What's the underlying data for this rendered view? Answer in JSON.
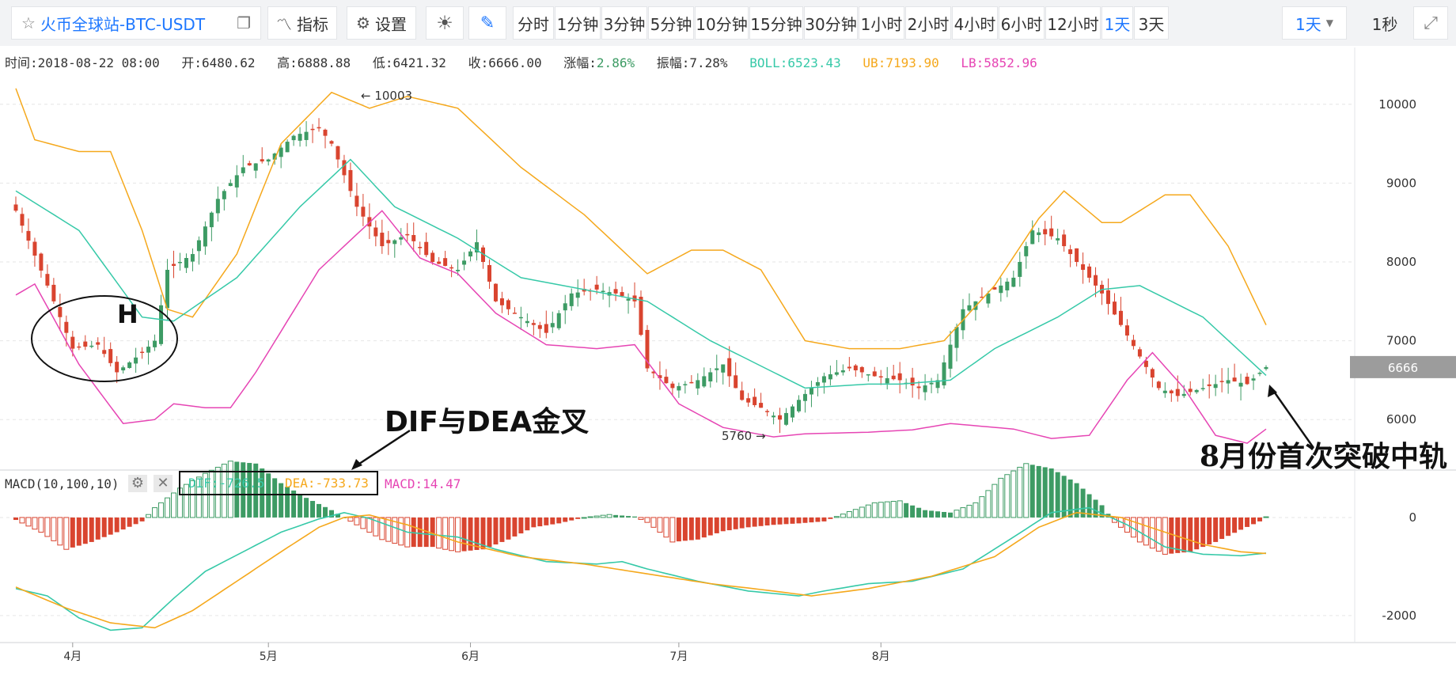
{
  "toolbar": {
    "symbol": "火币全球站-BTC-USDT",
    "indicator": "指标",
    "settings": "设置",
    "periods": [
      "分时",
      "1分钟",
      "3分钟",
      "5分钟",
      "10分钟",
      "15分钟",
      "30分钟",
      "1小时",
      "2小时",
      "4小时",
      "6小时",
      "12小时",
      "1天",
      "3天"
    ],
    "active_period": "1天",
    "period_select": "1天",
    "refresh": "1秒"
  },
  "info": {
    "time": "时间:2018-08-22 08:00",
    "open": "开:6480.62",
    "high": "高:6888.88",
    "low": "低:6421.32",
    "close": "收:6666.00",
    "change": "涨幅:2.86%",
    "amplitude": "振幅:7.28%",
    "boll": "BOLL:6523.43",
    "ub": "UB:7193.90",
    "lb": "LB:5852.96"
  },
  "macd": {
    "label": "MACD(10,100,10)",
    "dif": "DIF:-726.5",
    "dea": "DEA:-733.73",
    "macd": "MACD:14.47"
  },
  "annotations": {
    "pattern": "H",
    "cross": "DIF与DEA金叉",
    "breakout": "8月份首次突破中轨",
    "high_mark": "← 10003",
    "low_mark": "5760 →"
  },
  "colors": {
    "up": "#3d9b64",
    "down": "#d9442f",
    "mid": "#36c9a8",
    "upper": "#f5a81c",
    "lower": "#e645b4",
    "accent": "#1f78ff"
  },
  "chart_data": {
    "type": "candlestick",
    "price_axis": {
      "ticks": [
        10000,
        9000,
        8000,
        7000,
        6000
      ],
      "range": [
        5400,
        10600
      ]
    },
    "macd_axis": {
      "ticks": [
        0,
        -2000
      ],
      "range": [
        -2600,
        1000
      ]
    },
    "x_ticks": [
      "4月",
      "5月",
      "6月",
      "7月",
      "8月"
    ],
    "current_price": "6666",
    "key_points": [
      {
        "date": "2018-05-05",
        "label": "high",
        "value": 10003
      },
      {
        "date": "2018-06-29",
        "label": "low",
        "value": 5760
      },
      {
        "date": "2018-08-22",
        "label": "close",
        "value": 6666
      }
    ],
    "closes_anchor": [
      [
        0,
        8650
      ],
      [
        5,
        7700
      ],
      [
        9,
        6900
      ],
      [
        13,
        6950
      ],
      [
        16,
        6600
      ],
      [
        20,
        6850
      ],
      [
        22,
        7000
      ],
      [
        24,
        7900
      ],
      [
        28,
        8100
      ],
      [
        32,
        8800
      ],
      [
        36,
        9200
      ],
      [
        40,
        9300
      ],
      [
        44,
        9600
      ],
      [
        48,
        9700
      ],
      [
        50,
        9500
      ],
      [
        54,
        8700
      ],
      [
        58,
        8200
      ],
      [
        62,
        8350
      ],
      [
        66,
        8000
      ],
      [
        70,
        7900
      ],
      [
        73,
        8250
      ],
      [
        76,
        7500
      ],
      [
        80,
        7300
      ],
      [
        84,
        7100
      ],
      [
        88,
        7600
      ],
      [
        92,
        7650
      ],
      [
        95,
        7600
      ],
      [
        98,
        7500
      ],
      [
        100,
        6650
      ],
      [
        104,
        6400
      ],
      [
        108,
        6500
      ],
      [
        112,
        6700
      ],
      [
        115,
        6250
      ],
      [
        118,
        6150
      ],
      [
        121,
        6000
      ],
      [
        124,
        6250
      ],
      [
        128,
        6550
      ],
      [
        132,
        6650
      ],
      [
        136,
        6550
      ],
      [
        140,
        6500
      ],
      [
        143,
        6400
      ],
      [
        146,
        6500
      ],
      [
        150,
        7400
      ],
      [
        154,
        7600
      ],
      [
        158,
        7800
      ],
      [
        161,
        8400
      ],
      [
        165,
        8300
      ],
      [
        169,
        7900
      ],
      [
        172,
        7600
      ],
      [
        175,
        7200
      ],
      [
        178,
        6800
      ],
      [
        181,
        6400
      ],
      [
        184,
        6300
      ],
      [
        188,
        6400
      ],
      [
        192,
        6500
      ],
      [
        195,
        6450
      ],
      [
        198,
        6666
      ]
    ],
    "boll_mid_anchor": [
      [
        0,
        8900
      ],
      [
        10,
        8400
      ],
      [
        20,
        7300
      ],
      [
        25,
        7250
      ],
      [
        35,
        7800
      ],
      [
        45,
        8700
      ],
      [
        53,
        9300
      ],
      [
        60,
        8700
      ],
      [
        70,
        8300
      ],
      [
        80,
        7800
      ],
      [
        90,
        7650
      ],
      [
        100,
        7500
      ],
      [
        110,
        7000
      ],
      [
        120,
        6600
      ],
      [
        125,
        6400
      ],
      [
        135,
        6450
      ],
      [
        140,
        6450
      ],
      [
        148,
        6500
      ],
      [
        155,
        6900
      ],
      [
        165,
        7300
      ],
      [
        172,
        7650
      ],
      [
        178,
        7700
      ],
      [
        188,
        7300
      ],
      [
        198,
        6560
      ]
    ],
    "boll_upper_anchor": [
      [
        0,
        10200
      ],
      [
        3,
        9550
      ],
      [
        10,
        9400
      ],
      [
        15,
        9400
      ],
      [
        20,
        8400
      ],
      [
        24,
        7400
      ],
      [
        28,
        7300
      ],
      [
        35,
        8100
      ],
      [
        42,
        9500
      ],
      [
        50,
        10150
      ],
      [
        56,
        9950
      ],
      [
        62,
        10100
      ],
      [
        70,
        9950
      ],
      [
        80,
        9200
      ],
      [
        90,
        8600
      ],
      [
        100,
        7850
      ],
      [
        107,
        8150
      ],
      [
        112,
        8150
      ],
      [
        118,
        7900
      ],
      [
        125,
        7000
      ],
      [
        132,
        6900
      ],
      [
        140,
        6900
      ],
      [
        147,
        7000
      ],
      [
        155,
        7700
      ],
      [
        162,
        8550
      ],
      [
        166,
        8900
      ],
      [
        172,
        8500
      ],
      [
        175,
        8500
      ],
      [
        182,
        8850
      ],
      [
        186,
        8850
      ],
      [
        192,
        8200
      ],
      [
        198,
        7200
      ]
    ],
    "boll_lower_anchor": [
      [
        0,
        7580
      ],
      [
        3,
        7720
      ],
      [
        10,
        6700
      ],
      [
        17,
        5950
      ],
      [
        22,
        6000
      ],
      [
        25,
        6200
      ],
      [
        30,
        6150
      ],
      [
        34,
        6150
      ],
      [
        38,
        6600
      ],
      [
        48,
        7900
      ],
      [
        52,
        8200
      ],
      [
        58,
        8650
      ],
      [
        64,
        8050
      ],
      [
        70,
        7850
      ],
      [
        76,
        7350
      ],
      [
        84,
        6950
      ],
      [
        92,
        6900
      ],
      [
        98,
        6950
      ],
      [
        105,
        6200
      ],
      [
        112,
        5900
      ],
      [
        120,
        5780
      ],
      [
        125,
        5820
      ],
      [
        135,
        5840
      ],
      [
        142,
        5870
      ],
      [
        148,
        5950
      ],
      [
        158,
        5880
      ],
      [
        164,
        5760
      ],
      [
        170,
        5800
      ],
      [
        176,
        6500
      ],
      [
        180,
        6850
      ],
      [
        185,
        6400
      ],
      [
        190,
        5800
      ],
      [
        195,
        5700
      ],
      [
        198,
        5880
      ]
    ],
    "macd_dif_anchor": [
      [
        0,
        -1450
      ],
      [
        5,
        -1600
      ],
      [
        10,
        -2050
      ],
      [
        15,
        -2300
      ],
      [
        20,
        -2250
      ],
      [
        25,
        -1650
      ],
      [
        30,
        -1100
      ],
      [
        36,
        -700
      ],
      [
        42,
        -300
      ],
      [
        48,
        -30
      ],
      [
        52,
        100
      ],
      [
        56,
        -20
      ],
      [
        62,
        -300
      ],
      [
        70,
        -400
      ],
      [
        76,
        -650
      ],
      [
        84,
        -900
      ],
      [
        92,
        -950
      ],
      [
        96,
        -900
      ],
      [
        100,
        -1050
      ],
      [
        108,
        -1300
      ],
      [
        116,
        -1500
      ],
      [
        124,
        -1600
      ],
      [
        128,
        -1500
      ],
      [
        135,
        -1350
      ],
      [
        142,
        -1300
      ],
      [
        150,
        -1050
      ],
      [
        158,
        -400
      ],
      [
        164,
        100
      ],
      [
        170,
        200
      ],
      [
        176,
        -150
      ],
      [
        182,
        -600
      ],
      [
        188,
        -750
      ],
      [
        194,
        -780
      ],
      [
        198,
        -726
      ]
    ],
    "macd_dea_anchor": [
      [
        0,
        -1420
      ],
      [
        8,
        -1850
      ],
      [
        15,
        -2150
      ],
      [
        22,
        -2250
      ],
      [
        28,
        -1900
      ],
      [
        35,
        -1300
      ],
      [
        42,
        -700
      ],
      [
        48,
        -200
      ],
      [
        52,
        0
      ],
      [
        56,
        50
      ],
      [
        62,
        -150
      ],
      [
        70,
        -500
      ],
      [
        80,
        -800
      ],
      [
        90,
        -950
      ],
      [
        100,
        -1150
      ],
      [
        110,
        -1350
      ],
      [
        120,
        -1500
      ],
      [
        126,
        -1600
      ],
      [
        135,
        -1450
      ],
      [
        145,
        -1200
      ],
      [
        155,
        -800
      ],
      [
        162,
        -200
      ],
      [
        168,
        100
      ],
      [
        175,
        0
      ],
      [
        182,
        -300
      ],
      [
        188,
        -550
      ],
      [
        194,
        -700
      ],
      [
        198,
        -734
      ]
    ],
    "macd_hist_anchor": [
      [
        0,
        -50
      ],
      [
        4,
        -300
      ],
      [
        8,
        -650
      ],
      [
        12,
        -500
      ],
      [
        16,
        -300
      ],
      [
        20,
        -80
      ],
      [
        22,
        200
      ],
      [
        26,
        600
      ],
      [
        30,
        900
      ],
      [
        34,
        1150
      ],
      [
        38,
        1100
      ],
      [
        42,
        700
      ],
      [
        46,
        400
      ],
      [
        50,
        150
      ],
      [
        54,
        -150
      ],
      [
        58,
        -450
      ],
      [
        62,
        -600
      ],
      [
        66,
        -600
      ],
      [
        70,
        -700
      ],
      [
        74,
        -650
      ],
      [
        78,
        -450
      ],
      [
        82,
        -200
      ],
      [
        86,
        -120
      ],
      [
        90,
        0
      ],
      [
        94,
        60
      ],
      [
        98,
        20
      ],
      [
        100,
        -100
      ],
      [
        104,
        -500
      ],
      [
        108,
        -450
      ],
      [
        112,
        -280
      ],
      [
        116,
        -200
      ],
      [
        120,
        -150
      ],
      [
        124,
        -120
      ],
      [
        128,
        -80
      ],
      [
        132,
        120
      ],
      [
        136,
        300
      ],
      [
        140,
        340
      ],
      [
        144,
        150
      ],
      [
        148,
        100
      ],
      [
        152,
        300
      ],
      [
        156,
        800
      ],
      [
        160,
        1100
      ],
      [
        164,
        1000
      ],
      [
        168,
        700
      ],
      [
        172,
        250
      ],
      [
        174,
        -100
      ],
      [
        178,
        -500
      ],
      [
        182,
        -750
      ],
      [
        186,
        -700
      ],
      [
        190,
        -500
      ],
      [
        194,
        -250
      ],
      [
        197,
        -80
      ],
      [
        198,
        14
      ]
    ]
  }
}
